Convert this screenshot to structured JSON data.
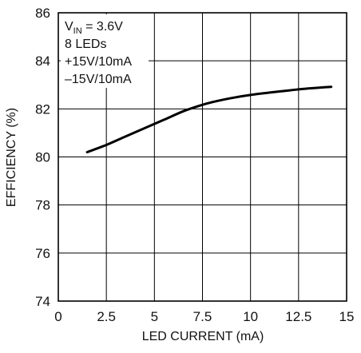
{
  "chart_data": {
    "type": "line",
    "xlabel": "LED CURRENT (mA)",
    "ylabel": "EFFICIENCY (%)",
    "xlim": [
      0,
      15
    ],
    "ylim": [
      74,
      86
    ],
    "x_ticks": [
      "0",
      "2.5",
      "5",
      "7.5",
      "10",
      "12.5",
      "15"
    ],
    "y_ticks": [
      "74",
      "76",
      "78",
      "80",
      "82",
      "84",
      "86"
    ],
    "grid": true,
    "annotation": {
      "vin_symbol": "V",
      "vin_subscript": "IN",
      "vin_value": " = 3.6V",
      "lines": [
        "8 LEDs",
        "+15V/10mA",
        "–15V/10mA"
      ]
    },
    "series": [
      {
        "x": [
          1.5,
          2.5,
          3.5,
          4.5,
          5.5,
          6.5,
          7.3,
          8.0,
          9.0,
          10.0,
          11.0,
          12.0,
          13.0,
          14.2
        ],
        "y": [
          80.2,
          80.5,
          80.85,
          81.2,
          81.55,
          81.9,
          82.12,
          82.28,
          82.45,
          82.58,
          82.68,
          82.77,
          82.85,
          82.92
        ]
      }
    ],
    "colors": {
      "line": "#000000",
      "grid": "#000000",
      "background": "#ffffff"
    }
  }
}
